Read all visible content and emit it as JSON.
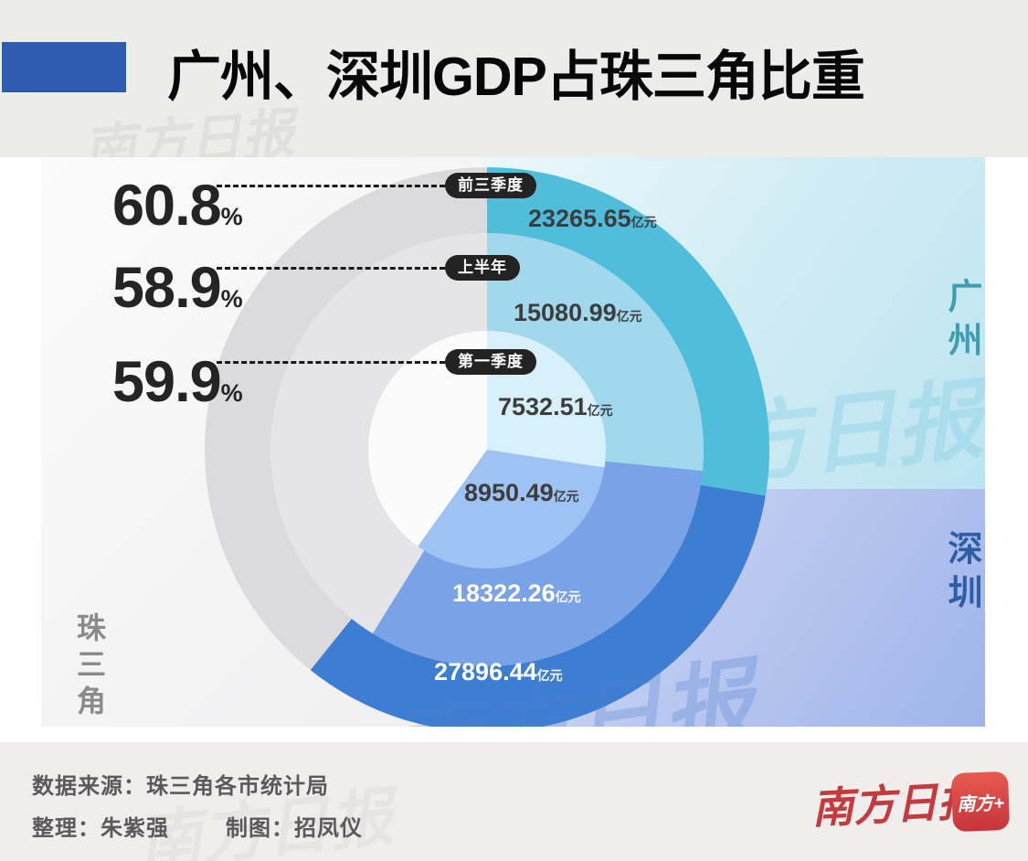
{
  "page": {
    "title": "广州、深圳GDP占珠三角比重"
  },
  "chart_data": {
    "type": "pie",
    "variant": "multi-ring-donut",
    "title": "广州、深圳GDP占珠三角比重",
    "unit": "亿元",
    "pct_unit": "%",
    "legend_position": "right-panels",
    "grid": false,
    "region_labels": {
      "guangzhou": "广州",
      "shenzhen": "深圳",
      "delta": "珠三角"
    },
    "rings": [
      {
        "period": "前三季度",
        "share_pct": 60.8,
        "guangzhou": 23265.65,
        "shenzhen": 27896.44,
        "gz_end_deg": 99.4,
        "sz_end_deg": 218.7,
        "colors": {
          "gz": "#50bedb",
          "sz": "#3d7ed2",
          "rest": "#dbdbdd"
        }
      },
      {
        "period": "上半年",
        "share_pct": 58.9,
        "guangzhou": 15080.99,
        "shenzhen": 18322.26,
        "gz_end_deg": 95.6,
        "sz_end_deg": 211.9,
        "colors": {
          "gz": "#a2d8eb",
          "sz": "#7aa2e6",
          "rest": "#e5e5e7"
        }
      },
      {
        "period": "第一季度",
        "share_pct": 59.9,
        "guangzhou": 7532.51,
        "shenzhen": 8950.49,
        "gz_end_deg": 98.6,
        "sz_end_deg": 215.6,
        "colors": {
          "gz": "#d8f0fa",
          "sz": "#9dc2f3",
          "rest": "#fbfbfc"
        }
      }
    ],
    "panel_colors": {
      "guangzhou": "#bce4f1",
      "shenzhen": "#9fb4ea"
    }
  },
  "watermark": {
    "text": "南方日报"
  },
  "accent": {
    "title_bar": "#2e5cb1",
    "logo_red": "#c43a3e",
    "pill_bg": "#232323"
  },
  "footer": {
    "source": "数据来源：珠三角各市统计局",
    "editor": "整理：朱紫强",
    "designer": "制图：招凤仪",
    "newspaper": "南方日报",
    "app_badge": "南方+"
  }
}
